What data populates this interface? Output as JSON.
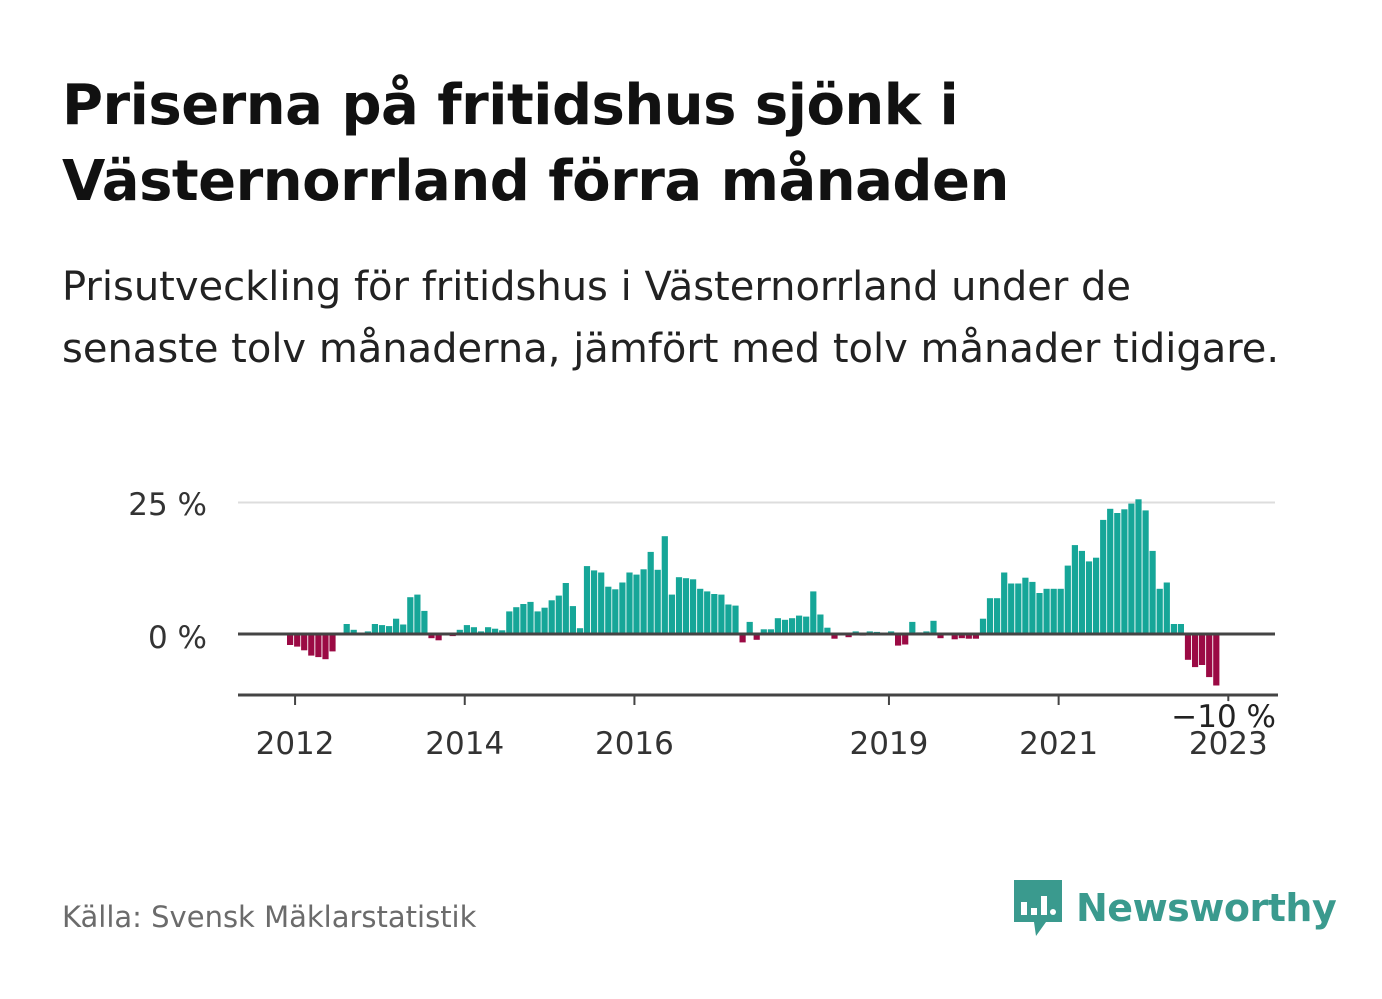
{
  "header": {
    "title": "Priserna på fritidshus sjönk i Västernorrland förra månaden",
    "subtitle": "Prisutveckling för fritidshus i Västernorrland under de senaste tolv månaderna, jämfört med tolv månader tidigare."
  },
  "footer": {
    "source": "Källa: Svensk Mäklarstatistik",
    "brand": "Newsworthy",
    "brand_color": "#3a9a8e"
  },
  "chart_data": {
    "type": "bar",
    "title": "",
    "xlabel": "",
    "ylabel": "",
    "ylim": [
      -10,
      25
    ],
    "y_ticks": [
      {
        "value": 25,
        "label": "25 %"
      },
      {
        "value": 0,
        "label": "0 %"
      }
    ],
    "x_ticks": [
      {
        "year": 2012,
        "label": "2012"
      },
      {
        "year": 2014,
        "label": "2014"
      },
      {
        "year": 2016,
        "label": "2016"
      },
      {
        "year": 2019,
        "label": "2019"
      },
      {
        "year": 2021,
        "label": "2021"
      },
      {
        "year": 2023,
        "label": "2023"
      }
    ],
    "start_month": "2011-12",
    "end_month": "2023-05",
    "annotation": {
      "label": "−10 %",
      "value": -10
    },
    "positive_color": "#16a698",
    "negative_color": "#9b0a44",
    "grid": true,
    "values": [
      -2.1,
      -2.4,
      -3.1,
      -4.1,
      -4.4,
      -4.8,
      -3.3,
      0.1,
      1.9,
      0.8,
      0.0,
      0.5,
      1.9,
      1.7,
      1.5,
      2.9,
      1.8,
      7.0,
      7.5,
      4.4,
      -0.8,
      -1.2,
      -0.2,
      -0.4,
      0.8,
      1.7,
      1.3,
      0.5,
      1.3,
      1.0,
      0.7,
      4.3,
      5.1,
      5.7,
      6.1,
      4.3,
      5.0,
      6.4,
      7.3,
      9.7,
      5.3,
      1.1,
      12.9,
      12.1,
      11.7,
      9.0,
      8.5,
      9.8,
      11.7,
      11.3,
      12.3,
      15.6,
      12.2,
      18.6,
      7.5,
      10.8,
      10.6,
      10.4,
      8.6,
      8.1,
      7.6,
      7.5,
      5.6,
      5.4,
      -1.6,
      2.3,
      -1.1,
      0.9,
      0.9,
      3.0,
      2.7,
      3.0,
      3.5,
      3.3,
      8.1,
      3.7,
      1.2,
      -0.9,
      -0.2,
      -0.6,
      0.5,
      -0.3,
      0.5,
      0.4,
      -0.2,
      0.5,
      -2.2,
      -2.0,
      2.3,
      0.3,
      0.5,
      2.5,
      -0.8,
      -0.2,
      -1.0,
      -0.8,
      -0.9,
      -0.9,
      2.9,
      6.8,
      6.8,
      11.7,
      9.6,
      9.6,
      10.7,
      9.9,
      7.8,
      8.6,
      8.6,
      8.6,
      13.0,
      16.9,
      15.8,
      13.8,
      14.5,
      21.7,
      23.8,
      23.0,
      23.7,
      24.8,
      25.6,
      23.5,
      15.8,
      8.6,
      9.8,
      1.9,
      1.9,
      -4.9,
      -6.3,
      -5.9,
      -8.2,
      -9.8
    ]
  }
}
